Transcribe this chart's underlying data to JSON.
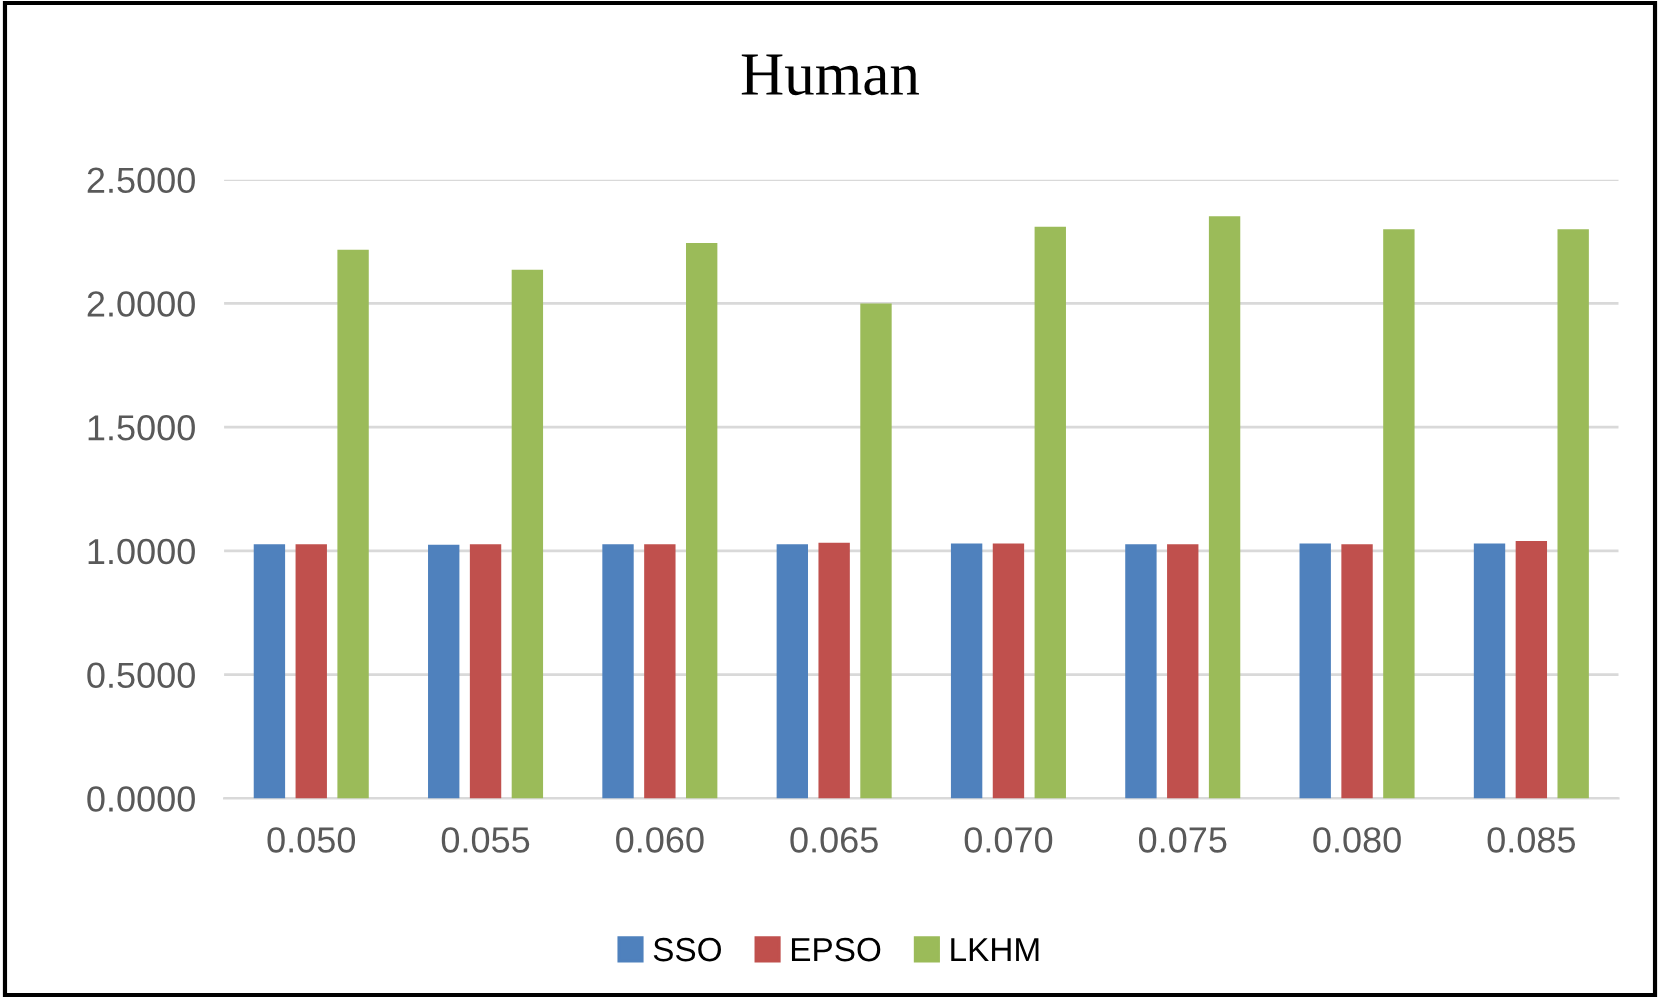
{
  "chart_data": {
    "type": "bar",
    "title": "Human",
    "categories": [
      "0.050",
      "0.055",
      "0.060",
      "0.065",
      "0.070",
      "0.075",
      "0.080",
      "0.085"
    ],
    "series": [
      {
        "name": "SSO",
        "color": "#4f81bd",
        "values": [
          1.027,
          1.025,
          1.027,
          1.027,
          1.03,
          1.027,
          1.03,
          1.03
        ]
      },
      {
        "name": "EPSO",
        "color": "#c0504d",
        "values": [
          1.027,
          1.027,
          1.027,
          1.033,
          1.03,
          1.027,
          1.027,
          1.04
        ]
      },
      {
        "name": "LKHM",
        "color": "#9bbb59",
        "values": [
          2.217,
          2.136,
          2.244,
          2.0,
          2.31,
          2.352,
          2.3,
          2.3
        ]
      }
    ],
    "ylim": [
      0,
      2.5
    ],
    "yticks": [
      {
        "value": 0,
        "label": "0.0000"
      },
      {
        "value": 0.5,
        "label": "0.5000"
      },
      {
        "value": 1.0,
        "label": "1.0000"
      },
      {
        "value": 1.5,
        "label": "1.5000"
      },
      {
        "value": 2.0,
        "label": "2.0000"
      },
      {
        "value": 2.5,
        "label": "2.5000"
      }
    ],
    "grid": "y",
    "legend": "bottom"
  }
}
